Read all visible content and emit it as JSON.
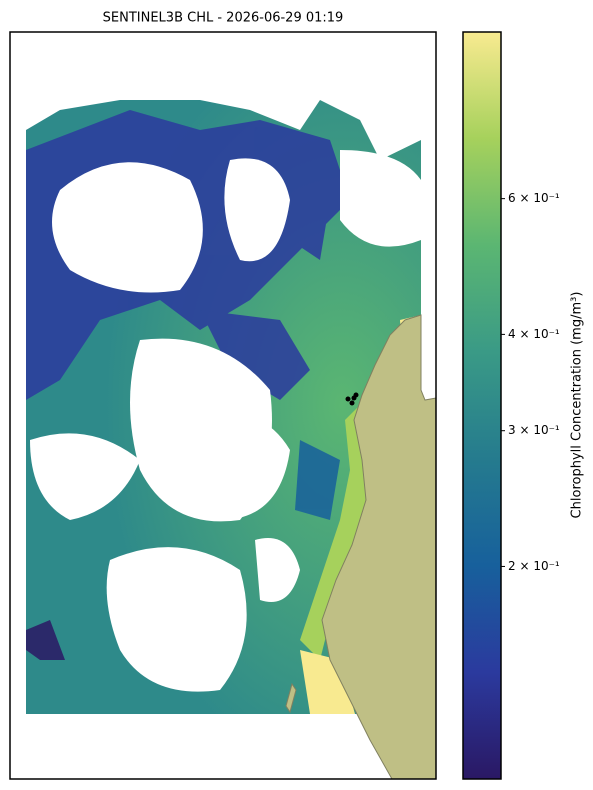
{
  "chart_data": {
    "type": "map",
    "title": "SENTINEL3B CHL - 2026-06-29 01:19",
    "colorbar": {
      "label": "Chlorophyll Concentration (mg/m³)",
      "scale": "log",
      "lim": [
        0.106,
        0.987
      ],
      "ticks": [
        {
          "value": 0.2,
          "label": "2 × 10⁻¹"
        },
        {
          "value": 0.3,
          "label": "3 × 10⁻¹"
        },
        {
          "value": 0.4,
          "label": "4 × 10⁻¹"
        },
        {
          "value": 0.6,
          "label": "6 × 10⁻¹"
        }
      ],
      "colormap": [
        "#2a1864",
        "#2b3a9e",
        "#17609c",
        "#257b8e",
        "#3a9a86",
        "#5bb672",
        "#a6d15c",
        "#f8ea90"
      ]
    }
  }
}
